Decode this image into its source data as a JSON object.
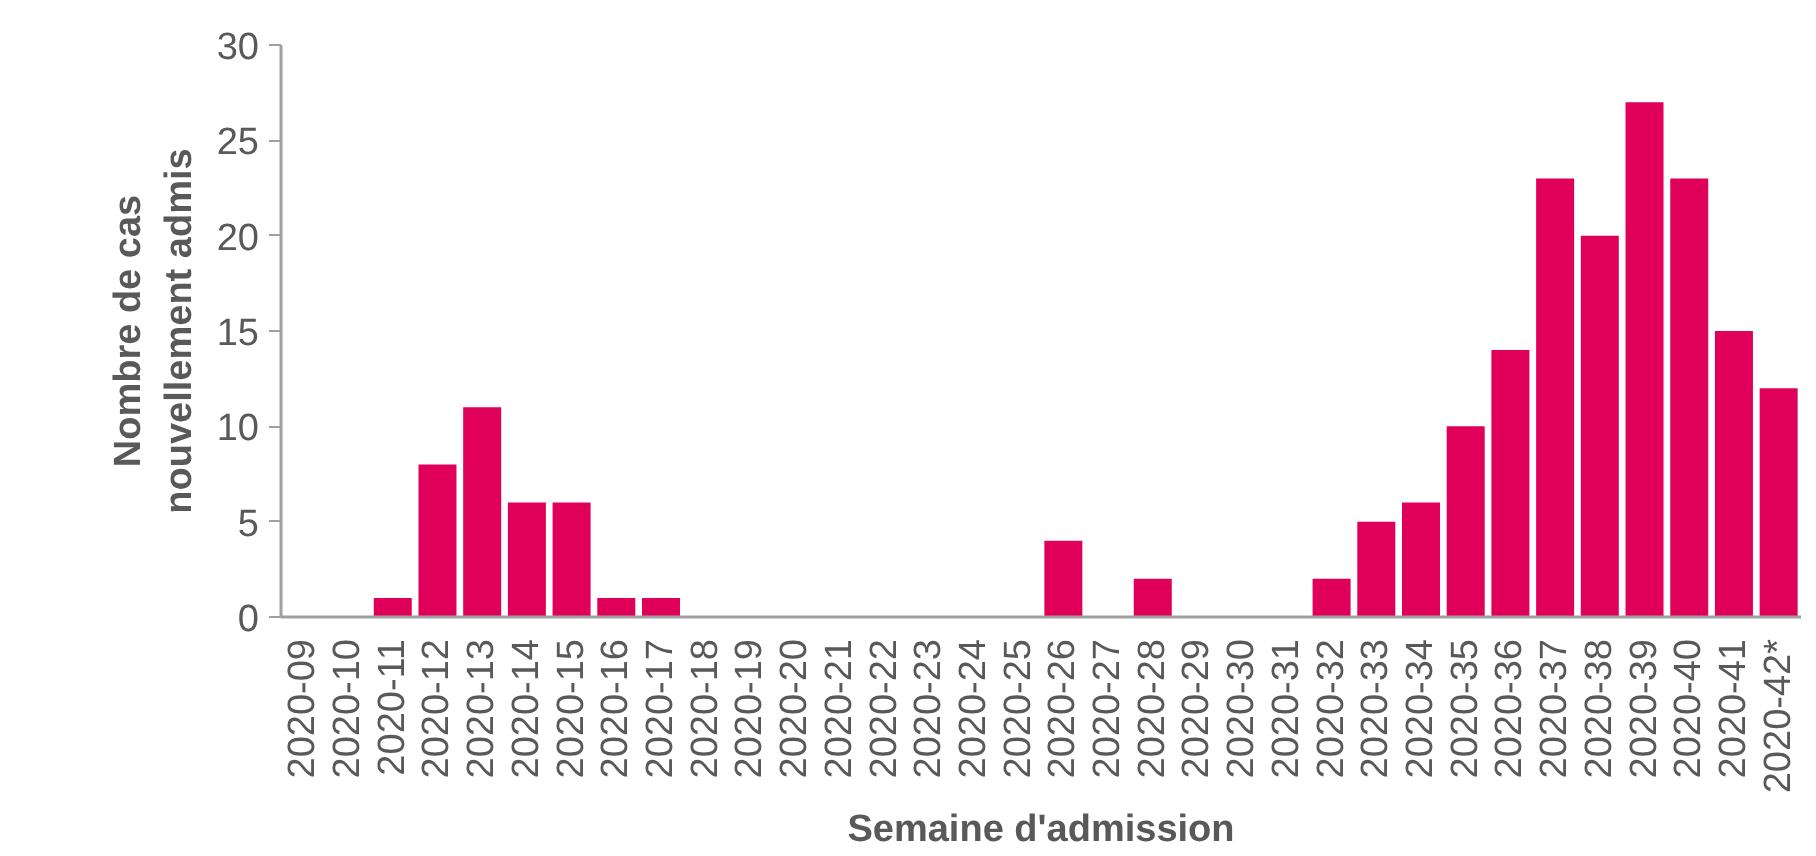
{
  "chart_data": {
    "type": "bar",
    "xlabel": "Semaine d'admission",
    "ylabel": "Nombre de cas nouvellement admis",
    "categories": [
      "2020-09",
      "2020-10",
      "2020-11",
      "2020-12",
      "2020-13",
      "2020-14",
      "2020-15",
      "2020-16",
      "2020-17",
      "2020-18",
      "2020-19",
      "2020-20",
      "2020-21",
      "2020-22",
      "2020-23",
      "2020-24",
      "2020-25",
      "2020-26",
      "2020-27",
      "2020-28",
      "2020-29",
      "2020-30",
      "2020-31",
      "2020-32",
      "2020-33",
      "2020-34",
      "2020-35",
      "2020-36",
      "2020-37",
      "2020-38",
      "2020-39",
      "2020-40",
      "2020-41",
      "2020-42*"
    ],
    "values": [
      0,
      0,
      1,
      8,
      11,
      6,
      6,
      1,
      1,
      0,
      0,
      0,
      0,
      0,
      0,
      0,
      0,
      4,
      0,
      2,
      0,
      0,
      0,
      2,
      5,
      6,
      10,
      14,
      23,
      20,
      27,
      23,
      15,
      12
    ],
    "color": "#e0005a",
    "ylim": [
      0,
      30
    ],
    "yticks": [
      0,
      5,
      10,
      15,
      20,
      25,
      30
    ],
    "grid": false
  }
}
